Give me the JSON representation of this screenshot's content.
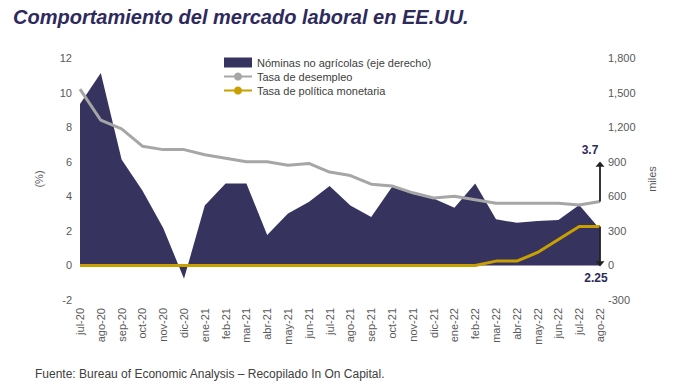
{
  "chart_data": {
    "type": "line",
    "title": "Comportamiento del mercado laboral en EE.UU.",
    "source": "Fuente: Bureau of Economic Analysis – Recopilado In On Capital.",
    "ylabel": "(%)",
    "y2label": "miles",
    "categories": [
      "jul-20",
      "ago-20",
      "sep-20",
      "oct-20",
      "nov-20",
      "dic-20",
      "ene-21",
      "feb-21",
      "mar-21",
      "abr-21",
      "may-21",
      "jun-21",
      "jul-21",
      "ago-21",
      "sep-21",
      "oct-21",
      "nov-21",
      "dic-21",
      "ene-22",
      "feb-22",
      "mar-22",
      "abr-22",
      "may-22",
      "jun-22",
      "jul-22",
      "ago-22"
    ],
    "series": [
      {
        "name": "Nóminas no agrícolas (eje derecho)",
        "type": "area",
        "axis": "y2",
        "color": "#37335f",
        "values": [
          1400,
          1670,
          920,
          650,
          325,
          -115,
          520,
          710,
          710,
          265,
          450,
          550,
          690,
          520,
          420,
          680,
          620,
          580,
          500,
          710,
          400,
          370,
          385,
          395,
          525,
          315
        ]
      },
      {
        "name": "Tasa de desempleo",
        "type": "line",
        "color": "#a6a6a6",
        "values": [
          10.2,
          8.4,
          7.9,
          6.9,
          6.7,
          6.7,
          6.4,
          6.2,
          6.0,
          6.0,
          5.8,
          5.9,
          5.4,
          5.2,
          4.7,
          4.6,
          4.2,
          3.9,
          4.0,
          3.8,
          3.6,
          3.6,
          3.6,
          3.6,
          3.5,
          3.7
        ]
      },
      {
        "name": "Tasa de política monetaria",
        "type": "line",
        "color": "#c9a000",
        "values": [
          0,
          0,
          0,
          0,
          0,
          0,
          0,
          0,
          0,
          0,
          0,
          0,
          0,
          0,
          0,
          0,
          0,
          0,
          0,
          0,
          0.25,
          0.25,
          0.75,
          1.5,
          2.25,
          2.25
        ]
      }
    ],
    "ylim": [
      -2,
      12
    ],
    "yticks": [
      -2,
      0,
      2,
      4,
      6,
      8,
      10,
      12
    ],
    "y2lim": [
      -300,
      1800
    ],
    "y2ticks": [
      -300,
      0,
      300,
      600,
      900,
      1200,
      1500,
      1800
    ],
    "grid": false,
    "legend": "top",
    "annotations": [
      {
        "text": "3.7",
        "series": "Tasa de desempleo",
        "x": "ago-22",
        "y": 3.7,
        "arrow": "up"
      },
      {
        "text": "2.25",
        "series": "Tasa de política monetaria",
        "x": "ago-22",
        "y": 2.25,
        "arrow": "down"
      }
    ]
  }
}
